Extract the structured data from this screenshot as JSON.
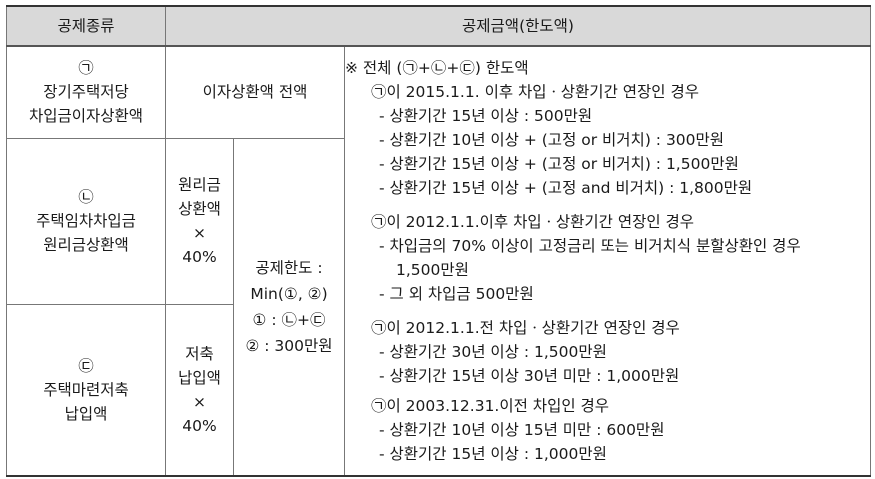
{
  "header": {
    "col_type": "공제종류",
    "col_amount": "공제금액(한도액)"
  },
  "rows": {
    "a": {
      "mark": "㉠",
      "name1": "장기주택저당",
      "name2": "차입금이자상환액",
      "amount": "이자상환액 전액"
    },
    "b": {
      "mark": "㉡",
      "name1": "주택임차차입금",
      "name2": "원리금상환액",
      "amount": [
        "원리금",
        "상환액",
        "×",
        "40%"
      ]
    },
    "c": {
      "mark": "㉢",
      "name1": "주택마련저축",
      "name2": "납입액",
      "amount": [
        "저축",
        "납입액",
        "×",
        "40%"
      ]
    }
  },
  "limit": {
    "line1": "공제한도 :",
    "line2": "Min(①, ②)",
    "line3": "① : ㉡+㉢",
    "line4": "② : 300만원"
  },
  "detail": {
    "title": "※ 전체 (㉠+㉡+㉢) 한도액",
    "g1": {
      "head": "㉠이 2015.1.1. 이후 차입ㆍ상환기간 연장인 경우",
      "items": [
        "- 상환기간 15년 이상 : 500만원",
        "- 상환기간 10년 이상 + (고정 or 비거치) : 300만원",
        "- 상환기간 15년 이상 + (고정 or 비거치) : 1,500만원",
        "- 상환기간 15년 이상 + (고정 and 비거치) : 1,800만원"
      ]
    },
    "g2": {
      "head": "㉠이 2012.1.1.이후 차입ㆍ상환기간 연장인 경우",
      "items": [
        "- 차입금의 70% 이상이 고정금리 또는 비거치식 분할상환인 경우",
        "1,500만원",
        "- 그 외 차입금 500만원"
      ]
    },
    "g3": {
      "head": "㉠이 2012.1.1.전 차입ㆍ상환기간 연장인 경우",
      "items": [
        "- 상환기간 30년 이상 : 1,500만원",
        "- 상환기간 15년 이상 30년 미만 : 1,000만원"
      ]
    },
    "g4": {
      "head": "㉠이 2003.12.31.이전 차입인 경우",
      "items": [
        "- 상환기간 10년 이상 15년 미만 : 600만원",
        "- 상환기간 15년 이상 : 1,000만원"
      ]
    }
  }
}
